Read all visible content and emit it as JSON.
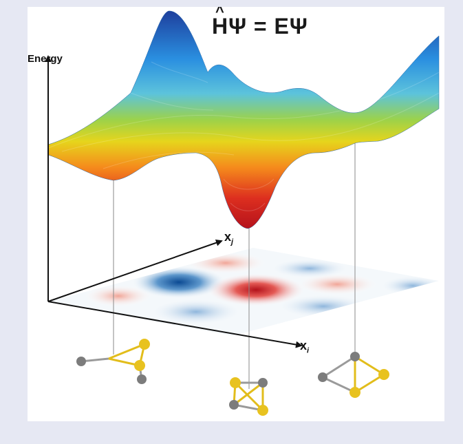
{
  "figure": {
    "equation": {
      "H": "H",
      "psi1": "Ψ",
      "eq": " = E",
      "psi2": "Ψ"
    },
    "y_axis_label": "Energy",
    "x_axis_label": {
      "base": "x",
      "sub": "i"
    },
    "z_axis_label": {
      "base": "x",
      "sub": "j"
    }
  },
  "colors": {
    "background": "#e6e8f3",
    "panel": "#ffffff",
    "atom_gold": "#e8c21f",
    "atom_gray": "#7c7c7c",
    "surface_high": "#1f4aa8",
    "surface_mid": "#a7d43a",
    "surface_low": "#c8161e"
  }
}
